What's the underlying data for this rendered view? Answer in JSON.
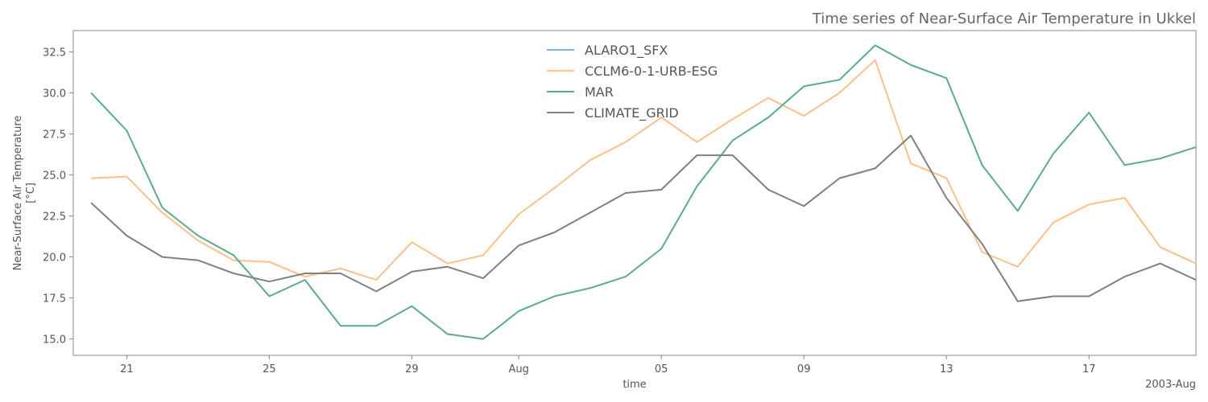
{
  "chart_data": {
    "type": "line",
    "title": "Time series of Near-Surface Air Temperature in Ukkel",
    "xlabel": "time",
    "ylabel_line1": "Near-Surface Air Temperature",
    "ylabel_line2": "[°C]",
    "x_offset_label": "2003-Aug",
    "ylim": [
      14.0,
      33.8
    ],
    "yticks": [
      "15.0",
      "17.5",
      "20.0",
      "22.5",
      "25.0",
      "27.5",
      "30.0",
      "32.5"
    ],
    "ytick_values": [
      15.0,
      17.5,
      20.0,
      22.5,
      25.0,
      27.5,
      30.0,
      32.5
    ],
    "xlim": [
      "2003-07-20",
      "2003-08-20"
    ],
    "xticks": [
      {
        "date": "2003-07-21",
        "label": "21"
      },
      {
        "date": "2003-07-25",
        "label": "25"
      },
      {
        "date": "2003-07-29",
        "label": "29"
      },
      {
        "date": "2003-08-01",
        "label": "Aug"
      },
      {
        "date": "2003-08-05",
        "label": "05"
      },
      {
        "date": "2003-08-09",
        "label": "09"
      },
      {
        "date": "2003-08-13",
        "label": "13"
      },
      {
        "date": "2003-08-17",
        "label": "17"
      }
    ],
    "grid": false,
    "legend_position": "top-center",
    "series": [
      {
        "name": "ALARO1_SFX",
        "color": "#7fb3d5",
        "x": [],
        "values": []
      },
      {
        "name": "CCLM6-0-1-URB-ESG",
        "color": "#fdc086",
        "x": [
          "2003-07-20",
          "2003-07-21",
          "2003-07-22",
          "2003-07-23",
          "2003-07-24",
          "2003-07-25",
          "2003-07-26",
          "2003-07-27",
          "2003-07-28",
          "2003-07-29",
          "2003-07-30",
          "2003-07-31",
          "2003-08-01",
          "2003-08-02",
          "2003-08-03",
          "2003-08-04",
          "2003-08-05",
          "2003-08-06",
          "2003-08-07",
          "2003-08-08",
          "2003-08-09",
          "2003-08-10",
          "2003-08-11",
          "2003-08-12",
          "2003-08-13",
          "2003-08-14",
          "2003-08-15",
          "2003-08-16",
          "2003-08-17",
          "2003-08-18",
          "2003-08-19",
          "2003-08-20"
        ],
        "values": [
          24.8,
          24.9,
          22.7,
          21.0,
          19.8,
          19.7,
          18.8,
          19.3,
          18.6,
          20.9,
          19.6,
          20.1,
          22.6,
          24.2,
          25.9,
          27.0,
          28.5,
          27.0,
          28.4,
          29.7,
          28.6,
          30.0,
          32.0,
          25.7,
          24.8,
          20.3,
          19.4,
          22.1,
          23.2,
          23.6,
          20.6,
          19.6
        ]
      },
      {
        "name": "MAR",
        "color": "#5aab8c",
        "x": [
          "2003-07-20",
          "2003-07-21",
          "2003-07-22",
          "2003-07-23",
          "2003-07-24",
          "2003-07-25",
          "2003-07-26",
          "2003-07-27",
          "2003-07-28",
          "2003-07-29",
          "2003-07-30",
          "2003-07-31",
          "2003-08-01",
          "2003-08-02",
          "2003-08-03",
          "2003-08-04",
          "2003-08-05",
          "2003-08-06",
          "2003-08-07",
          "2003-08-08",
          "2003-08-09",
          "2003-08-10",
          "2003-08-11",
          "2003-08-12",
          "2003-08-13",
          "2003-08-14",
          "2003-08-15",
          "2003-08-16",
          "2003-08-17",
          "2003-08-18",
          "2003-08-19",
          "2003-08-20"
        ],
        "values": [
          30.0,
          27.7,
          23.0,
          21.3,
          20.1,
          17.6,
          18.6,
          15.8,
          15.8,
          17.0,
          15.3,
          15.0,
          16.7,
          17.6,
          18.1,
          18.8,
          20.5,
          24.3,
          27.1,
          28.5,
          30.4,
          30.8,
          32.9,
          31.7,
          30.9,
          25.6,
          22.8,
          26.3,
          28.8,
          25.6,
          26.0,
          26.7
        ]
      },
      {
        "name": "CLIMATE_GRID",
        "color": "#808080",
        "x": [
          "2003-07-20",
          "2003-07-21",
          "2003-07-22",
          "2003-07-23",
          "2003-07-24",
          "2003-07-25",
          "2003-07-26",
          "2003-07-27",
          "2003-07-28",
          "2003-07-29",
          "2003-07-30",
          "2003-07-31",
          "2003-08-01",
          "2003-08-02",
          "2003-08-03",
          "2003-08-04",
          "2003-08-05",
          "2003-08-06",
          "2003-08-07",
          "2003-08-08",
          "2003-08-09",
          "2003-08-10",
          "2003-08-11",
          "2003-08-12",
          "2003-08-13",
          "2003-08-14",
          "2003-08-15",
          "2003-08-16",
          "2003-08-17",
          "2003-08-18",
          "2003-08-19",
          "2003-08-20"
        ],
        "values": [
          23.3,
          21.3,
          20.0,
          19.8,
          19.0,
          18.5,
          19.0,
          19.0,
          17.9,
          19.1,
          19.4,
          18.7,
          20.7,
          21.5,
          22.7,
          23.9,
          24.1,
          26.2,
          26.2,
          24.1,
          23.1,
          24.8,
          25.4,
          27.4,
          23.6,
          20.8,
          17.3,
          17.6,
          17.6,
          18.8,
          19.6,
          18.6
        ]
      }
    ]
  }
}
